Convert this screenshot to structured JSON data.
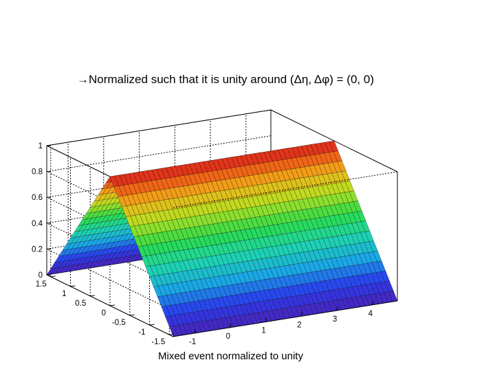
{
  "headline": {
    "arrow": "→",
    "text": "Normalized such that it is unity around (Δη, Δφ) = (0, 0)"
  },
  "caption": "Mixed event normalized to unity",
  "chart_data": {
    "type": "surface3d",
    "title": "",
    "zlabel": "",
    "x_axis": {
      "ticks": [
        "-1",
        "0",
        "1",
        "2",
        "3",
        "4"
      ],
      "range": [
        -1.6,
        4.7
      ]
    },
    "y_axis": {
      "ticks": [
        "-1.5",
        "-1",
        "-0.5",
        "0",
        "0.5",
        "1",
        "1.5"
      ],
      "range": [
        -1.6,
        1.6
      ]
    },
    "z_axis": {
      "ticks": [
        "0",
        "0.2",
        "0.4",
        "0.6",
        "0.8",
        "1"
      ],
      "range": [
        0,
        1.0
      ]
    },
    "grid": true,
    "colormap": "rainbow",
    "surface": {
      "description_function": "z = 1 - |y| / 1.6 (triangular ridge, constant along x)",
      "y_samples": [
        -1.6,
        -1.2,
        -0.8,
        -0.4,
        0.0,
        0.4,
        0.8,
        1.2,
        1.6
      ],
      "z_values": [
        0.0,
        0.25,
        0.5,
        0.75,
        1.0,
        0.75,
        0.5,
        0.25,
        0.0
      ]
    }
  }
}
